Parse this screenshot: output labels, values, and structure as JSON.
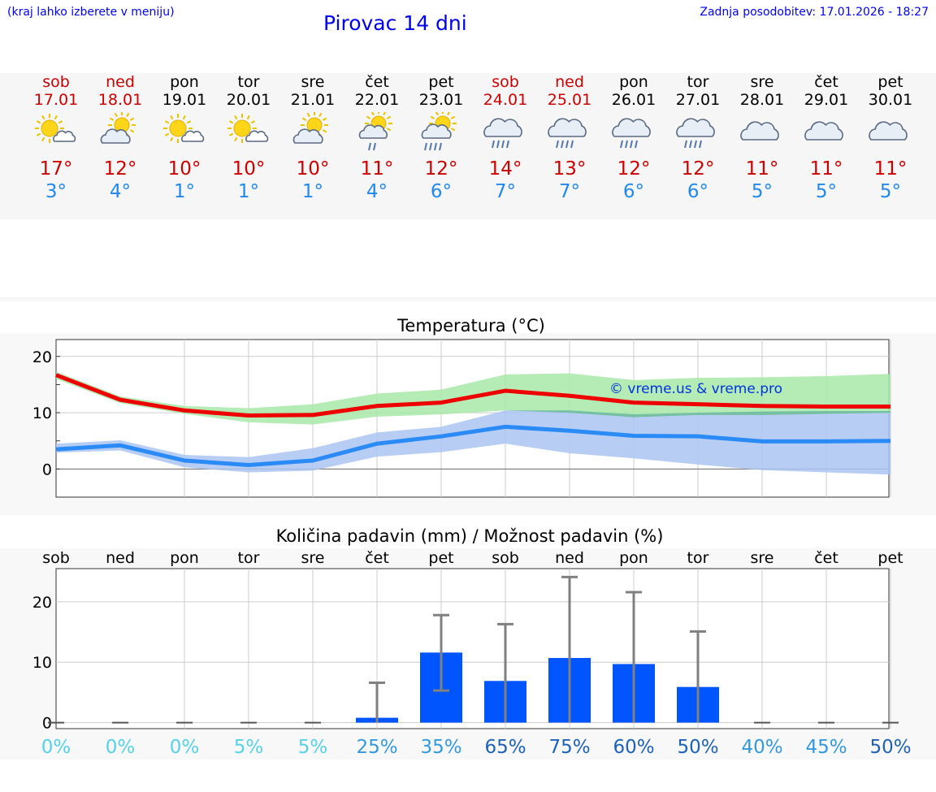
{
  "header": {
    "hint": "(kraj lahko izberete v meniju)",
    "title": "Pirovac 14 dni",
    "updated": "Zadnja posodobitev: 17.01.2026 - 18:27"
  },
  "days": [
    {
      "name": "sob",
      "date": "17.01",
      "weekend": true,
      "icon": "sun-small-cloud-icon",
      "max": "17°",
      "min": "3°"
    },
    {
      "name": "ned",
      "date": "18.01",
      "weekend": true,
      "icon": "sun-cloud-icon",
      "max": "12°",
      "min": "4°"
    },
    {
      "name": "pon",
      "date": "19.01",
      "weekend": false,
      "icon": "sun-small-cloud-icon",
      "max": "10°",
      "min": "1°"
    },
    {
      "name": "tor",
      "date": "20.01",
      "weekend": false,
      "icon": "sun-small-cloud-icon",
      "max": "10°",
      "min": "1°"
    },
    {
      "name": "sre",
      "date": "21.01",
      "weekend": false,
      "icon": "sun-cloud-icon",
      "max": "10°",
      "min": "1°"
    },
    {
      "name": "čet",
      "date": "22.01",
      "weekend": false,
      "icon": "sun-cloud-light-rain-icon",
      "max": "11°",
      "min": "4°"
    },
    {
      "name": "pet",
      "date": "23.01",
      "weekend": false,
      "icon": "sun-cloud-rain-icon",
      "max": "12°",
      "min": "6°"
    },
    {
      "name": "sob",
      "date": "24.01",
      "weekend": true,
      "icon": "cloud-rain-icon",
      "max": "14°",
      "min": "7°"
    },
    {
      "name": "ned",
      "date": "25.01",
      "weekend": true,
      "icon": "cloud-rain-icon",
      "max": "13°",
      "min": "7°"
    },
    {
      "name": "pon",
      "date": "26.01",
      "weekend": false,
      "icon": "cloud-rain-icon",
      "max": "12°",
      "min": "6°"
    },
    {
      "name": "tor",
      "date": "27.01",
      "weekend": false,
      "icon": "cloud-rain-icon",
      "max": "12°",
      "min": "6°"
    },
    {
      "name": "sre",
      "date": "28.01",
      "weekend": false,
      "icon": "cloud-icon",
      "max": "11°",
      "min": "5°"
    },
    {
      "name": "čet",
      "date": "29.01",
      "weekend": false,
      "icon": "cloud-icon",
      "max": "11°",
      "min": "5°"
    },
    {
      "name": "pet",
      "date": "30.01",
      "weekend": false,
      "icon": "cloud-icon",
      "max": "11°",
      "min": "5°"
    }
  ],
  "chart_data": [
    {
      "type": "line",
      "title": "Temperatura (°C)",
      "watermark": "© vreme.us & vreme.pro",
      "ylim": [
        -5,
        23
      ],
      "yticks": [
        "0",
        "10",
        "20"
      ],
      "ytick_values": [
        0,
        10,
        20
      ],
      "x": [
        0,
        1,
        2,
        3,
        4,
        5,
        6,
        7,
        8,
        9,
        10,
        11,
        12,
        13
      ],
      "series": [
        {
          "name": "max",
          "color": "#ee0000",
          "values": [
            16.7,
            12.3,
            10.4,
            9.5,
            9.6,
            11.2,
            11.8,
            13.9,
            13.0,
            11.8,
            11.5,
            11.2,
            11.1,
            11.1
          ]
        },
        {
          "name": "min",
          "color": "#2a8af6",
          "values": [
            3.5,
            4.2,
            1.5,
            0.7,
            1.5,
            4.5,
            5.8,
            7.5,
            6.8,
            5.9,
            5.8,
            4.9,
            4.9,
            5.0
          ]
        },
        {
          "name": "max_range",
          "color": "#a8e8a8",
          "low": [
            16.0,
            11.7,
            9.8,
            8.3,
            7.9,
            9.3,
            9.7,
            10.4,
            10.0,
            9.2,
            9.6,
            9.6,
            9.8,
            10.0
          ],
          "high": [
            17.3,
            12.9,
            11.2,
            10.8,
            11.5,
            13.4,
            14.1,
            16.8,
            17.0,
            15.8,
            16.2,
            16.3,
            16.5,
            16.9
          ]
        },
        {
          "name": "min_range",
          "color": "#aac4f2",
          "low": [
            2.9,
            3.3,
            0.3,
            -0.6,
            -0.3,
            2.2,
            3.0,
            4.5,
            2.8,
            1.9,
            0.8,
            -0.2,
            -0.6,
            -1.0
          ],
          "high": [
            4.5,
            5.1,
            2.5,
            2.1,
            3.7,
            6.5,
            7.5,
            10.4,
            10.4,
            9.7,
            10.0,
            10.2,
            10.3,
            10.3
          ]
        }
      ]
    },
    {
      "type": "bar",
      "title": "Količina padavin (mm) / Možnost padavin (%)",
      "categories": [
        "sob",
        "ned",
        "pon",
        "tor",
        "sre",
        "čet",
        "pet",
        "sob",
        "ned",
        "pon",
        "tor",
        "sre",
        "čet",
        "pet"
      ],
      "ylim": [
        -1,
        25.5
      ],
      "yticks": [
        "0",
        "10",
        "20"
      ],
      "ytick_values": [
        0,
        10,
        20
      ],
      "bar_color": "#0055ff",
      "values": [
        0,
        0,
        0,
        0,
        0,
        0.8,
        11.6,
        6.9,
        10.7,
        9.7,
        5.9,
        0,
        0,
        0
      ],
      "error_low": [
        0,
        0,
        0,
        0,
        0,
        0,
        5.3,
        0,
        0,
        0,
        0,
        0,
        0,
        0
      ],
      "error_high": [
        0,
        0,
        0,
        0,
        0,
        6.6,
        17.8,
        16.3,
        24.1,
        21.6,
        15.1,
        0,
        0,
        0
      ],
      "probabilities": [
        "0%",
        "0%",
        "0%",
        "5%",
        "5%",
        "25%",
        "35%",
        "65%",
        "75%",
        "60%",
        "50%",
        "40%",
        "45%",
        "50%"
      ],
      "probability_colors": [
        "#55d2e6",
        "#55d2e6",
        "#55d2e6",
        "#55d2e6",
        "#55d2e6",
        "#3399dd",
        "#3399dd",
        "#1e62b8",
        "#1e62b8",
        "#1e62b8",
        "#1e62b8",
        "#3399dd",
        "#3399dd",
        "#1e62b8"
      ]
    }
  ]
}
